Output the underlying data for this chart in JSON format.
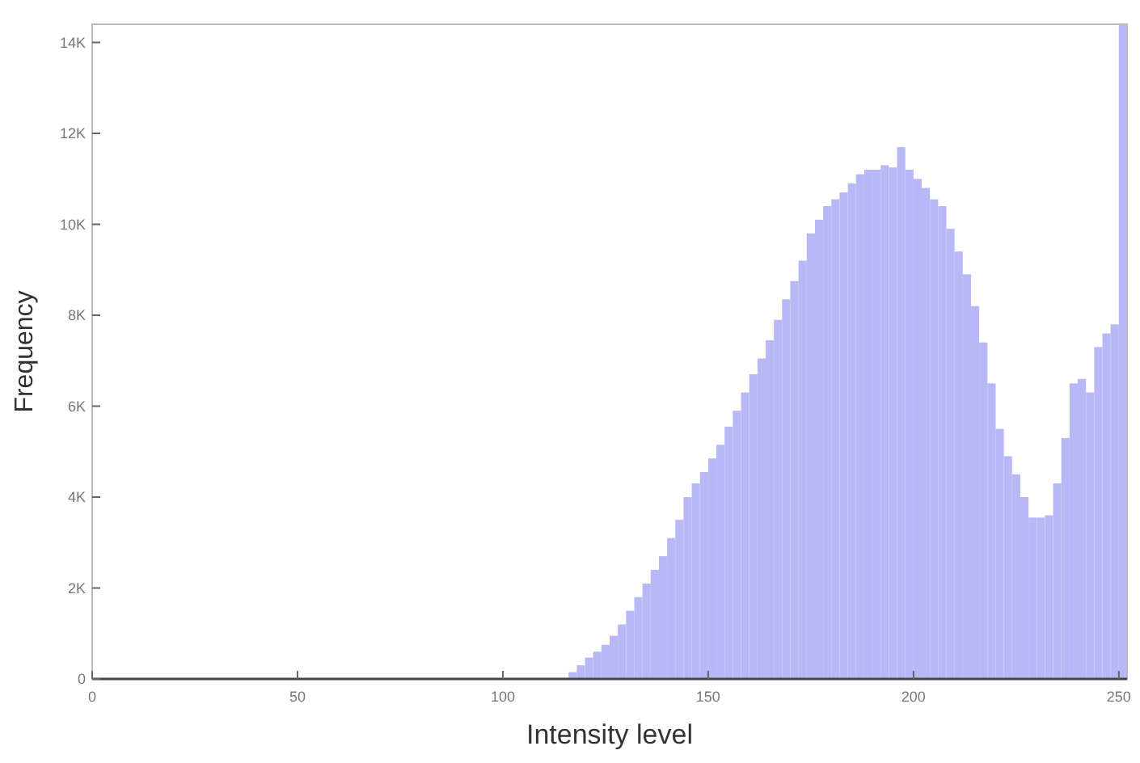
{
  "chart_data": {
    "type": "histogram",
    "xlabel": "Intensity level",
    "ylabel": "Frequency",
    "color": "#b8b8f6",
    "bins": [
      116,
      118,
      120,
      122,
      124,
      126,
      128,
      130,
      132,
      134,
      136,
      138,
      140,
      142,
      144,
      146,
      148,
      150,
      152,
      154,
      156,
      158,
      160,
      162,
      164,
      166,
      168,
      170,
      172,
      174,
      176,
      178,
      180,
      182,
      184,
      186,
      188,
      190,
      192,
      194,
      196,
      198,
      200,
      202,
      204,
      206,
      208,
      210,
      212,
      214,
      216,
      218,
      220,
      222,
      224,
      226,
      228,
      230,
      232,
      234,
      236,
      238,
      240,
      242,
      244,
      246,
      248,
      250,
      252
    ],
    "values": [
      150,
      300,
      470,
      600,
      750,
      950,
      1200,
      1500,
      1800,
      2100,
      2400,
      2700,
      3100,
      3500,
      4000,
      4300,
      4550,
      4850,
      5150,
      5550,
      5900,
      6300,
      6700,
      7050,
      7450,
      7900,
      8350,
      8750,
      9200,
      9800,
      10100,
      10400,
      10550,
      10700,
      10900,
      11100,
      11200,
      11200,
      11300,
      11250,
      11700,
      11200,
      11000,
      10800,
      10550,
      10400,
      9900,
      9400,
      8900,
      8200,
      7400,
      6500,
      5500,
      4900,
      4500,
      4000,
      3550,
      3550,
      3600,
      4300,
      5300,
      6500,
      6600,
      6300,
      7300,
      7600,
      7800,
      14400
    ],
    "xlim": [
      0,
      252
    ],
    "ylim": [
      0,
      14400
    ],
    "xticks": [
      0,
      50,
      100,
      150,
      200,
      250
    ],
    "yticks": [
      0,
      {
        "value": 2000,
        "label": "2K"
      },
      {
        "value": 4000,
        "label": "4K"
      },
      {
        "value": 6000,
        "label": "6K"
      },
      {
        "value": 8000,
        "label": "8K"
      },
      {
        "value": 10000,
        "label": "10K"
      },
      {
        "value": 12000,
        "label": "12K"
      },
      {
        "value": 14000,
        "label": "14K"
      }
    ],
    "grid": false
  }
}
